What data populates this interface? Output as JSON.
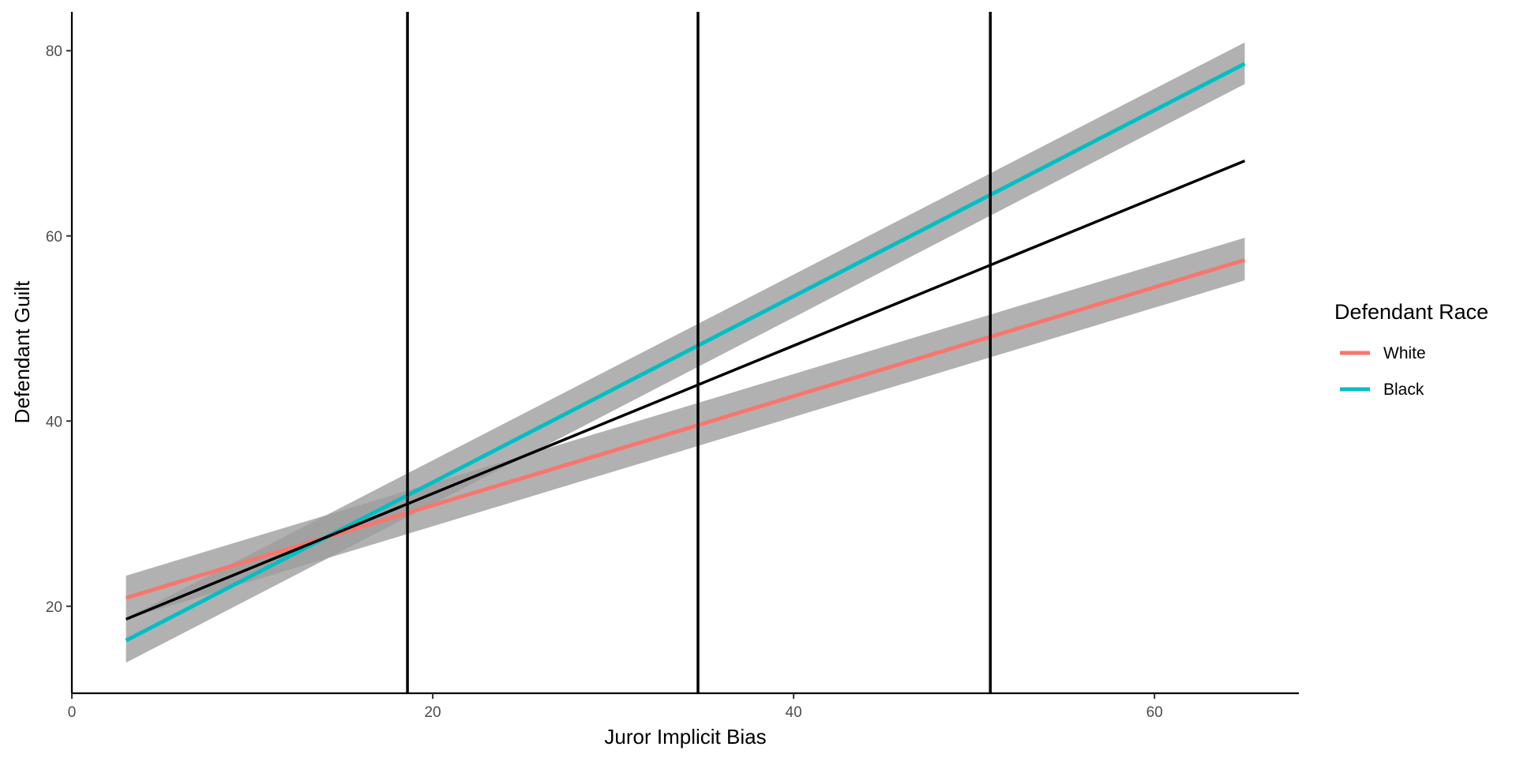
{
  "chart_data": {
    "type": "line",
    "title": "",
    "xlabel": "Juror Implicit Bias",
    "ylabel": "Defendant Guilt",
    "xlim": [
      0,
      68
    ],
    "ylim": [
      10.6,
      84.2
    ],
    "x_ticks": [
      0,
      20,
      40,
      60
    ],
    "y_ticks": [
      20,
      40,
      60,
      80
    ],
    "grid": false,
    "legend": {
      "title": "Defendant Race",
      "position": "right"
    },
    "series": [
      {
        "name": "White",
        "color": "#F8766D",
        "x": [
          3,
          65
        ],
        "y": [
          20.9,
          57.4
        ],
        "ci_lower": [
          18.6,
          55.2
        ],
        "ci_upper": [
          23.3,
          59.8
        ]
      },
      {
        "name": "Black",
        "color": "#00BFC4",
        "x": [
          3,
          65
        ],
        "y": [
          16.3,
          78.6
        ],
        "ci_lower": [
          13.9,
          76.4
        ],
        "ci_upper": [
          18.7,
          80.9
        ]
      }
    ],
    "reference_line": {
      "color": "#000000",
      "x": [
        3,
        65
      ],
      "y": [
        18.6,
        68.1
      ]
    },
    "vertical_lines": [
      18.6,
      34.7,
      50.9
    ],
    "ci_fill_color": "#9e9e9e"
  }
}
